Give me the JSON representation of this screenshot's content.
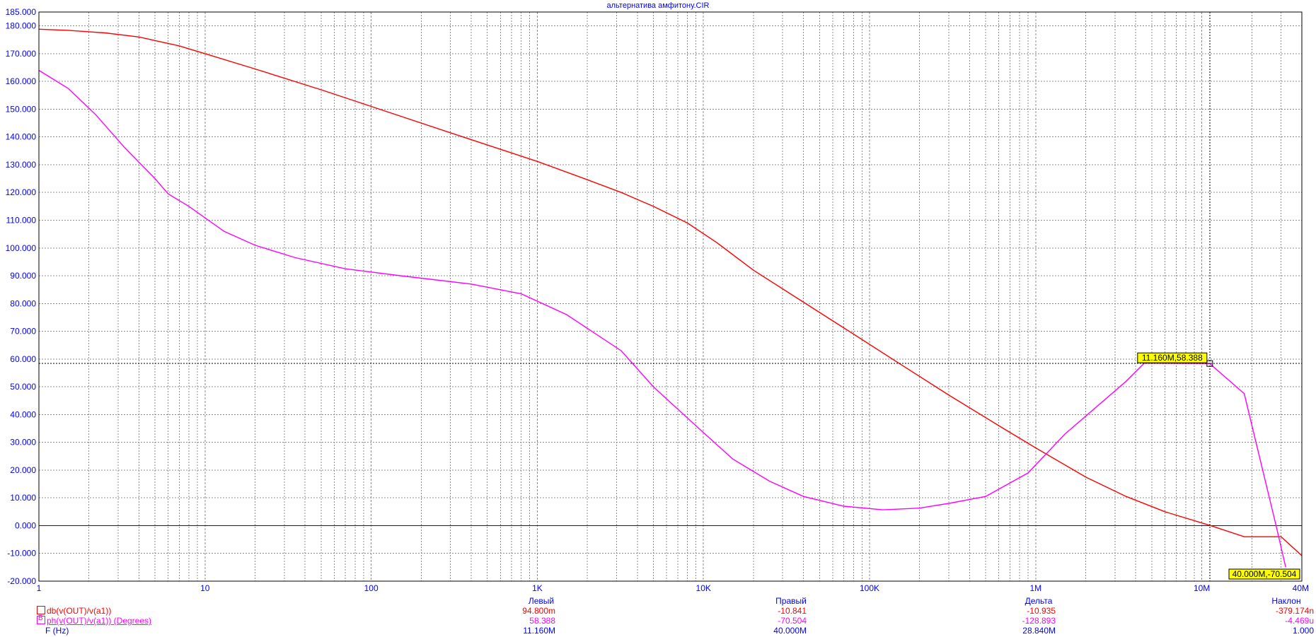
{
  "chart_data": {
    "type": "line",
    "title": "альтернатива амфитону.CIR",
    "x_scale": "log",
    "x_range": [
      1,
      40000000
    ],
    "y_range": [
      -20,
      185
    ],
    "grid": true,
    "x_ticks": [
      {
        "value": 1,
        "label": "1"
      },
      {
        "value": 10,
        "label": "10"
      },
      {
        "value": 100,
        "label": "100"
      },
      {
        "value": 1000,
        "label": "1K"
      },
      {
        "value": 10000,
        "label": "10K"
      },
      {
        "value": 100000,
        "label": "100K"
      },
      {
        "value": 1000000,
        "label": "1M"
      },
      {
        "value": 10000000,
        "label": "10M"
      },
      {
        "value": 40000000,
        "label": "40M"
      }
    ],
    "y_ticks": [
      {
        "value": 185,
        "label": "185.000"
      },
      {
        "value": 180,
        "label": "180.000"
      },
      {
        "value": 170,
        "label": "170.000"
      },
      {
        "value": 160,
        "label": "160.000"
      },
      {
        "value": 150,
        "label": "150.000"
      },
      {
        "value": 140,
        "label": "140.000"
      },
      {
        "value": 130,
        "label": "130.000"
      },
      {
        "value": 120,
        "label": "120.000"
      },
      {
        "value": 110,
        "label": "110.000"
      },
      {
        "value": 100,
        "label": "100.000"
      },
      {
        "value": 90,
        "label": "90.000"
      },
      {
        "value": 80,
        "label": "80.000"
      },
      {
        "value": 70,
        "label": "70.000"
      },
      {
        "value": 60,
        "label": "60.000"
      },
      {
        "value": 50,
        "label": "50.000"
      },
      {
        "value": 40,
        "label": "40.000"
      },
      {
        "value": 30,
        "label": "30.000"
      },
      {
        "value": 20,
        "label": "20.000"
      },
      {
        "value": 10,
        "label": "10.000"
      },
      {
        "value": 0,
        "label": "0.000"
      },
      {
        "value": -10,
        "label": "-10.000"
      },
      {
        "value": -20,
        "label": "-20.000"
      }
    ],
    "series": [
      {
        "name": "db(v(OUT)/v(a1))",
        "color": "#ff0000",
        "points": [
          [
            1,
            178.8
          ],
          [
            1.5,
            178.4
          ],
          [
            2.5,
            177.5
          ],
          [
            4,
            176
          ],
          [
            7,
            172.8
          ],
          [
            10,
            170
          ],
          [
            20,
            164.5
          ],
          [
            50,
            157
          ],
          [
            100,
            151
          ],
          [
            300,
            141.5
          ],
          [
            1000,
            131.2
          ],
          [
            2000,
            124.6
          ],
          [
            3200,
            120
          ],
          [
            5000,
            115
          ],
          [
            8000,
            109
          ],
          [
            12000,
            102
          ],
          [
            20000,
            92
          ],
          [
            40000,
            80.5
          ],
          [
            80000,
            69
          ],
          [
            150000,
            58.5
          ],
          [
            300000,
            47
          ],
          [
            600000,
            36
          ],
          [
            1000000,
            28
          ],
          [
            2000000,
            17.5
          ],
          [
            3500000,
            10.5
          ],
          [
            6000000,
            5
          ],
          [
            11160000,
            0.0948
          ],
          [
            18000000,
            -4
          ],
          [
            30000000,
            -4
          ],
          [
            40000000,
            -10.841
          ]
        ]
      },
      {
        "name": "ph(v(OUT)/v(a1)) (Degrees)",
        "color": "#ff00ff",
        "points": [
          [
            1,
            164
          ],
          [
            1.5,
            157.5
          ],
          [
            2.2,
            148
          ],
          [
            3.3,
            136
          ],
          [
            5,
            125
          ],
          [
            6,
            119.5
          ],
          [
            8,
            115
          ],
          [
            13,
            106
          ],
          [
            20,
            101
          ],
          [
            35,
            96.5
          ],
          [
            70,
            92.5
          ],
          [
            150,
            90
          ],
          [
            400,
            87
          ],
          [
            800,
            83.5
          ],
          [
            1500,
            76
          ],
          [
            3200,
            63
          ],
          [
            5000,
            50
          ],
          [
            9000,
            36
          ],
          [
            15000,
            24
          ],
          [
            25000,
            16
          ],
          [
            40000,
            10.5
          ],
          [
            70000,
            7
          ],
          [
            120000,
            5.7
          ],
          [
            200000,
            6.3
          ],
          [
            300000,
            8
          ],
          [
            500000,
            10.5
          ],
          [
            900000,
            19
          ],
          [
            1500000,
            33
          ],
          [
            3500000,
            52
          ],
          [
            4500000,
            58.5
          ],
          [
            11160000,
            58.388
          ],
          [
            18000000,
            47.5
          ],
          [
            28000000,
            0
          ],
          [
            32000000,
            -15
          ]
        ]
      }
    ],
    "zero_line_color": "#0000ff",
    "cursors": {
      "x": 11160000,
      "y": 58.388,
      "markers": [
        {
          "label": "11.160M,58.388",
          "x": 11160000,
          "y": 58.388,
          "anchor": "left"
        },
        {
          "label": "40.000M,-70.504",
          "x": 40000000,
          "y": -70.504,
          "anchor": "left"
        }
      ]
    },
    "cursor_table": {
      "columns": [
        "Левый",
        "Правый",
        "Дельта",
        "Наклон"
      ],
      "rows": [
        {
          "label": "db(v(OUT)/v(a1))",
          "color": "#ff0000",
          "mark": "",
          "values": [
            "94.800m",
            "-10.841",
            "-10.935",
            "-379.174n"
          ]
        },
        {
          "label": "ph(v(OUT)/v(a1)) (Degrees)",
          "color": "#ff00ff",
          "mark": "B",
          "values": [
            "58.388",
            "-70.504",
            "-128.893",
            "-4.469u"
          ]
        },
        {
          "label": "F (Hz)",
          "color": "#0000ff",
          "mark": "",
          "values": [
            "11.160M",
            "40.000M",
            "28.840M",
            "1.000"
          ]
        }
      ]
    }
  }
}
